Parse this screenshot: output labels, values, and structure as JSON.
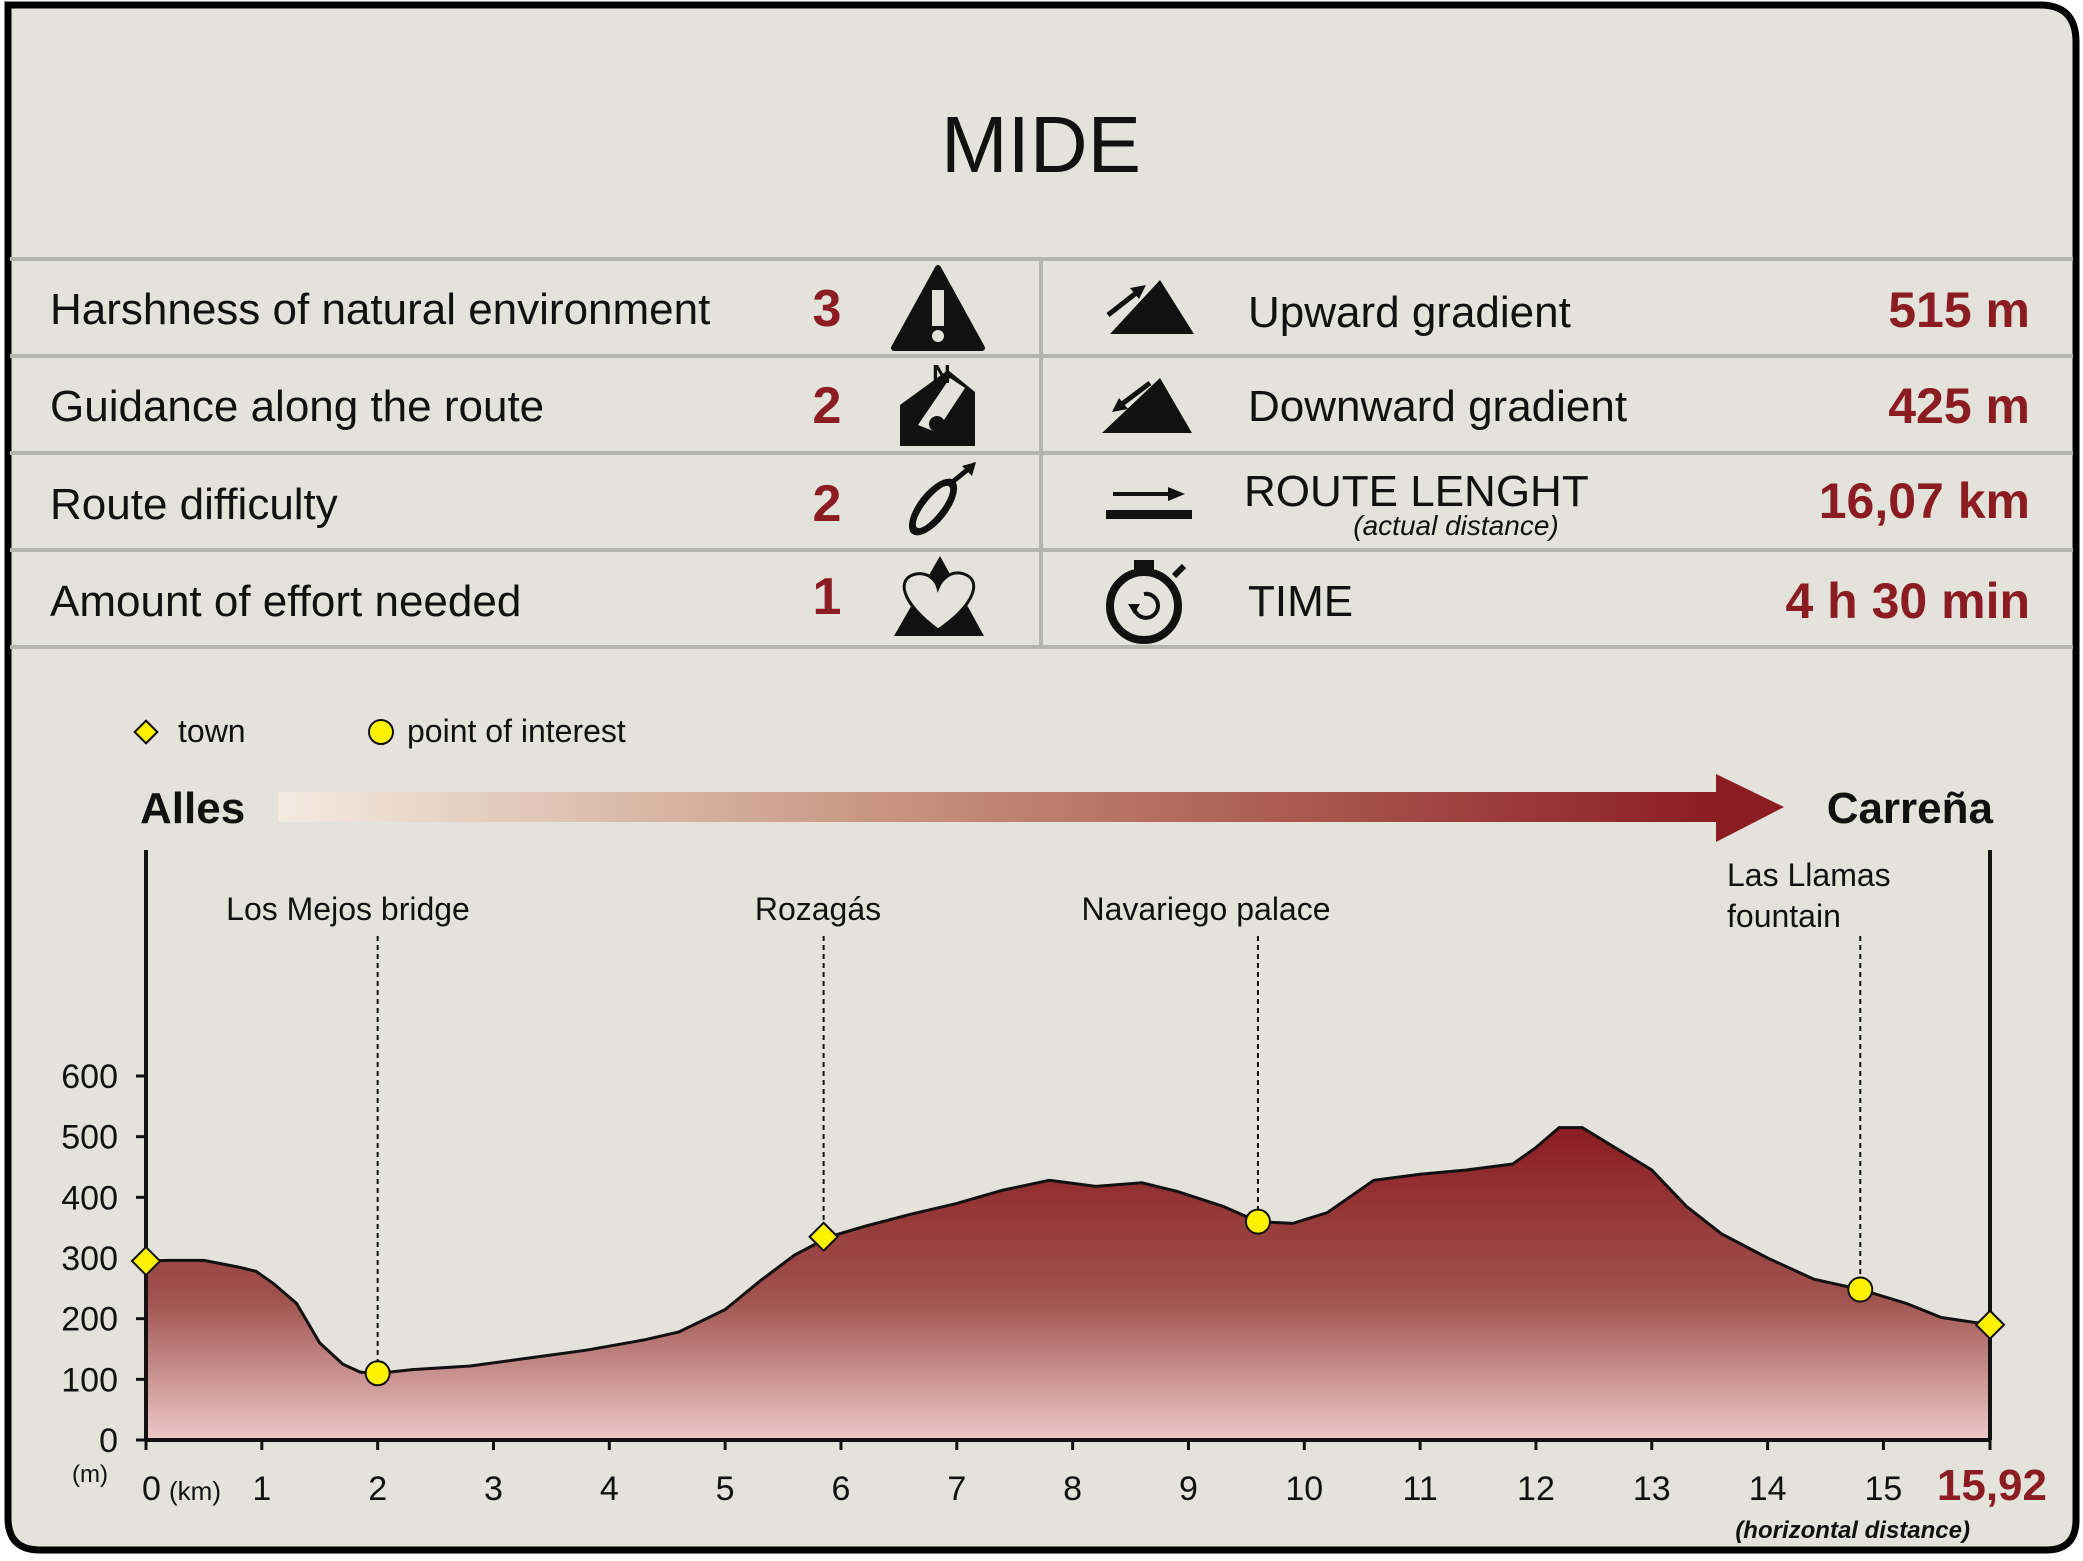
{
  "title": "MIDE",
  "mide_left": [
    {
      "label": "Harshness of natural environment",
      "value": "3",
      "icon": "warning-icon"
    },
    {
      "label": "Guidance along the route",
      "value": "2",
      "icon": "orientation-icon"
    },
    {
      "label": "Route difficulty",
      "value": "2",
      "icon": "footprint-icon"
    },
    {
      "label": "Amount of effort needed",
      "value": "1",
      "icon": "heart-icon"
    }
  ],
  "mide_right": [
    {
      "label": "Upward gradient",
      "sublabel": "",
      "value": "515 m",
      "icon": "upward-gradient-icon"
    },
    {
      "label": "Downward gradient",
      "sublabel": "",
      "value": "425 m",
      "icon": "downward-gradient-icon"
    },
    {
      "label": "ROUTE LENGHT",
      "sublabel": "(actual distance)",
      "value": "16,07 km",
      "icon": "route-length-icon"
    },
    {
      "label": "TIME",
      "sublabel": "",
      "value": "4 h 30 min",
      "icon": "stopwatch-icon"
    }
  ],
  "legend": {
    "town": "town",
    "poi": "point of interest"
  },
  "route": {
    "start": "Alles",
    "end": "Carreña"
  },
  "colors": {
    "background": "#e3e3db",
    "accent": "#8b1c22",
    "marker": "#fff200",
    "divider": "#b5b5b0"
  },
  "chart_data": {
    "type": "area",
    "xlabel": "(km)",
    "ylabel": "(m)",
    "xlim": [
      0,
      15.92
    ],
    "ylim": [
      0,
      600
    ],
    "x_ticks": [
      0,
      1,
      2,
      3,
      4,
      5,
      6,
      7,
      8,
      9,
      10,
      11,
      12,
      13,
      14,
      15
    ],
    "x_tick_labels": [
      "0",
      "1",
      "2",
      "3",
      "4",
      "5",
      "6",
      "7",
      "8",
      "9",
      "10",
      "11",
      "12",
      "13",
      "14",
      "15"
    ],
    "y_ticks": [
      0,
      100,
      200,
      300,
      400,
      500,
      600
    ],
    "y_tick_labels": [
      "0",
      "100",
      "200",
      "300",
      "400",
      "500",
      "600"
    ],
    "end_label": "15,92",
    "end_note": "(horizontal distance)",
    "grid": false,
    "elevation_profile": [
      [
        0,
        295
      ],
      [
        0.2,
        296
      ],
      [
        0.5,
        296
      ],
      [
        0.8,
        285
      ],
      [
        0.95,
        278
      ],
      [
        1.1,
        258
      ],
      [
        1.3,
        225
      ],
      [
        1.5,
        160
      ],
      [
        1.7,
        125
      ],
      [
        1.85,
        112
      ],
      [
        2.0,
        110
      ],
      [
        2.3,
        116
      ],
      [
        2.8,
        122
      ],
      [
        3.3,
        135
      ],
      [
        3.8,
        148
      ],
      [
        4.3,
        165
      ],
      [
        4.6,
        178
      ],
      [
        5.0,
        215
      ],
      [
        5.3,
        262
      ],
      [
        5.6,
        305
      ],
      [
        5.9,
        335
      ],
      [
        6.2,
        352
      ],
      [
        6.6,
        372
      ],
      [
        7.0,
        390
      ],
      [
        7.4,
        412
      ],
      [
        7.8,
        428
      ],
      [
        8.2,
        418
      ],
      [
        8.6,
        424
      ],
      [
        8.9,
        410
      ],
      [
        9.3,
        385
      ],
      [
        9.6,
        360
      ],
      [
        9.9,
        357
      ],
      [
        10.2,
        375
      ],
      [
        10.6,
        428
      ],
      [
        11.0,
        438
      ],
      [
        11.4,
        445
      ],
      [
        11.8,
        455
      ],
      [
        12.0,
        482
      ],
      [
        12.2,
        515
      ],
      [
        12.4,
        515
      ],
      [
        12.7,
        480
      ],
      [
        13.0,
        445
      ],
      [
        13.3,
        385
      ],
      [
        13.6,
        340
      ],
      [
        14.0,
        300
      ],
      [
        14.4,
        265
      ],
      [
        14.8,
        248
      ],
      [
        15.2,
        225
      ],
      [
        15.5,
        202
      ],
      [
        15.92,
        190
      ]
    ],
    "towns": [
      {
        "x": 0,
        "y": 295,
        "name": "Alles"
      },
      {
        "x": 5.85,
        "y": 335,
        "name": "Rozagás"
      },
      {
        "x": 15.92,
        "y": 190,
        "name": "Carreña"
      }
    ],
    "points_of_interest": [
      {
        "x": 2.0,
        "y": 110,
        "name": "Los Mejos bridge"
      },
      {
        "x": 9.6,
        "y": 360,
        "name": "Navariego palace"
      },
      {
        "x": 14.8,
        "y": 248,
        "name": "Las Llamas fountain"
      }
    ],
    "annotations": [
      {
        "x": 2.0,
        "y": 110,
        "lines": [
          "Los Mejos bridge"
        ]
      },
      {
        "x": 5.85,
        "y": 335,
        "lines": [
          "Rozagás"
        ]
      },
      {
        "x": 9.6,
        "y": 360,
        "lines": [
          "Navariego palace"
        ]
      },
      {
        "x": 14.8,
        "y": 248,
        "lines": [
          "Las Llamas",
          "fountain"
        ]
      }
    ]
  }
}
